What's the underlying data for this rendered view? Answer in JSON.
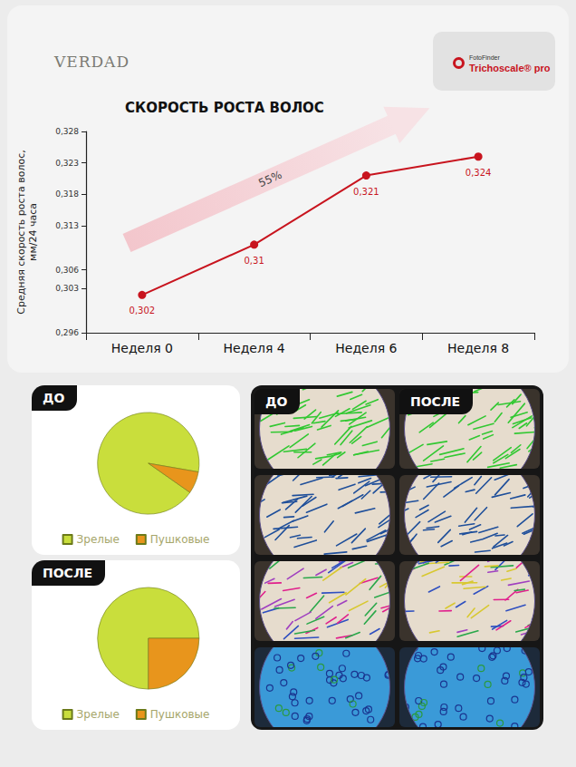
{
  "header": {
    "brand": "VERDAD",
    "logo": [
      "FotoFinder",
      "Trichoscale® pro"
    ]
  },
  "chart_data": [
    {
      "type": "line",
      "title": "СКОРОСТЬ РОСТА ВОЛОС",
      "ylabel": "Средняя скорость роста волос,\nмм/24 часа",
      "categories": [
        "Неделя 0",
        "Неделя 4",
        "Неделя 6",
        "Неделя 8"
      ],
      "values": [
        0.302,
        0.31,
        0.321,
        0.324
      ],
      "value_labels": [
        "0,302",
        "0,31",
        "0,321",
        "0,324"
      ],
      "data_labels": true,
      "color": "#c8141e",
      "marker": "circle",
      "ylim": [
        0.296,
        0.328
      ],
      "yticks": [
        {
          "value": 0.296,
          "label": "0,296"
        },
        {
          "value": 0.303,
          "label": "0,303"
        },
        {
          "value": 0.306,
          "label": "0,306"
        },
        {
          "value": 0.313,
          "label": "0,313"
        },
        {
          "value": 0.318,
          "label": "0,318"
        },
        {
          "value": 0.323,
          "label": "0,323"
        },
        {
          "value": 0.328,
          "label": "0,328"
        }
      ],
      "grid": false,
      "annotation": "55%"
    },
    {
      "type": "pie",
      "title": "ДО",
      "categories": [
        "Зрелые",
        "Пушковые"
      ],
      "values": [
        93,
        7
      ],
      "colors": [
        "#c9de3c",
        "#e8951c"
      ],
      "legend": "bottom"
    },
    {
      "type": "pie",
      "title": "ПОСЛЕ",
      "categories": [
        "Зрелые",
        "Пушковые"
      ],
      "values": [
        75,
        25
      ],
      "colors": [
        "#c9de3c",
        "#e8951c"
      ],
      "legend": "bottom"
    }
  ],
  "photo_panel": {
    "labels": [
      "ДО",
      "ПОСЛЕ"
    ]
  }
}
